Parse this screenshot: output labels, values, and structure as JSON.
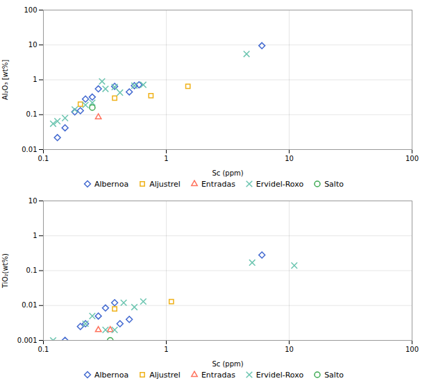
{
  "chart_data": [
    {
      "type": "scatter",
      "xlabel": "Sc (ppm)",
      "ylabel": "Al₂O₃ [wt%]",
      "log": true,
      "grid": true,
      "legend": "bottom",
      "xlim": [
        0.1,
        100
      ],
      "ylim": [
        0.01,
        100
      ],
      "xticks": [
        0.1,
        1,
        10,
        100
      ],
      "yticks": [
        0.01,
        0.1,
        1,
        10,
        100
      ],
      "series": [
        {
          "name": "Albernoa",
          "marker": "diamond",
          "x": [
            0.13,
            0.15,
            0.18,
            0.2,
            0.22,
            0.25,
            0.28,
            0.38,
            0.5,
            0.55,
            0.6,
            6.0
          ],
          "values": [
            0.022,
            0.042,
            0.12,
            0.13,
            0.28,
            0.32,
            0.55,
            0.65,
            0.45,
            0.68,
            0.72,
            9.5
          ]
        },
        {
          "name": "Aljustrel",
          "marker": "square",
          "x": [
            0.2,
            0.38,
            0.75,
            1.5
          ],
          "values": [
            0.2,
            0.3,
            0.35,
            0.65
          ]
        },
        {
          "name": "Entradas",
          "marker": "triangle",
          "x": [
            0.28
          ],
          "values": [
            0.085
          ]
        },
        {
          "name": "Ervidel-Roxo",
          "marker": "x",
          "x": [
            0.12,
            0.13,
            0.15,
            0.18,
            0.22,
            0.25,
            0.3,
            0.32,
            0.38,
            0.42,
            0.55,
            0.65,
            4.5
          ],
          "values": [
            0.055,
            0.065,
            0.08,
            0.14,
            0.19,
            0.22,
            0.9,
            0.55,
            0.62,
            0.43,
            0.68,
            0.72,
            5.5
          ]
        },
        {
          "name": "Salto",
          "marker": "circle",
          "x": [
            0.25
          ],
          "values": [
            0.16
          ]
        }
      ]
    },
    {
      "type": "scatter",
      "xlabel": "Sc (ppm)",
      "ylabel": "TiO₂(wt%)",
      "log": true,
      "grid": true,
      "legend": "bottom",
      "xlim": [
        0.1,
        100
      ],
      "ylim": [
        0.001,
        10
      ],
      "xticks": [
        0.1,
        1,
        10,
        100
      ],
      "yticks": [
        0.001,
        0.01,
        0.1,
        1,
        10
      ],
      "series": [
        {
          "name": "Albernoa",
          "marker": "diamond",
          "x": [
            0.15,
            0.2,
            0.22,
            0.28,
            0.32,
            0.38,
            0.42,
            0.5,
            6.0
          ],
          "values": [
            0.001,
            0.0025,
            0.003,
            0.005,
            0.0085,
            0.012,
            0.003,
            0.004,
            0.28
          ]
        },
        {
          "name": "Aljustrel",
          "marker": "square",
          "x": [
            0.38,
            1.1
          ],
          "values": [
            0.008,
            0.013
          ]
        },
        {
          "name": "Entradas",
          "marker": "triangle",
          "x": [
            0.28,
            0.35
          ],
          "values": [
            0.002,
            0.002
          ]
        },
        {
          "name": "Ervidel-Roxo",
          "marker": "x",
          "x": [
            0.12,
            0.22,
            0.25,
            0.32,
            0.38,
            0.45,
            0.55,
            0.65,
            5.0,
            11.0
          ],
          "values": [
            0.001,
            0.003,
            0.005,
            0.002,
            0.002,
            0.012,
            0.009,
            0.013,
            0.17,
            0.14
          ]
        },
        {
          "name": "Salto",
          "marker": "circle",
          "x": [
            0.35
          ],
          "values": [
            0.001
          ]
        }
      ]
    }
  ]
}
